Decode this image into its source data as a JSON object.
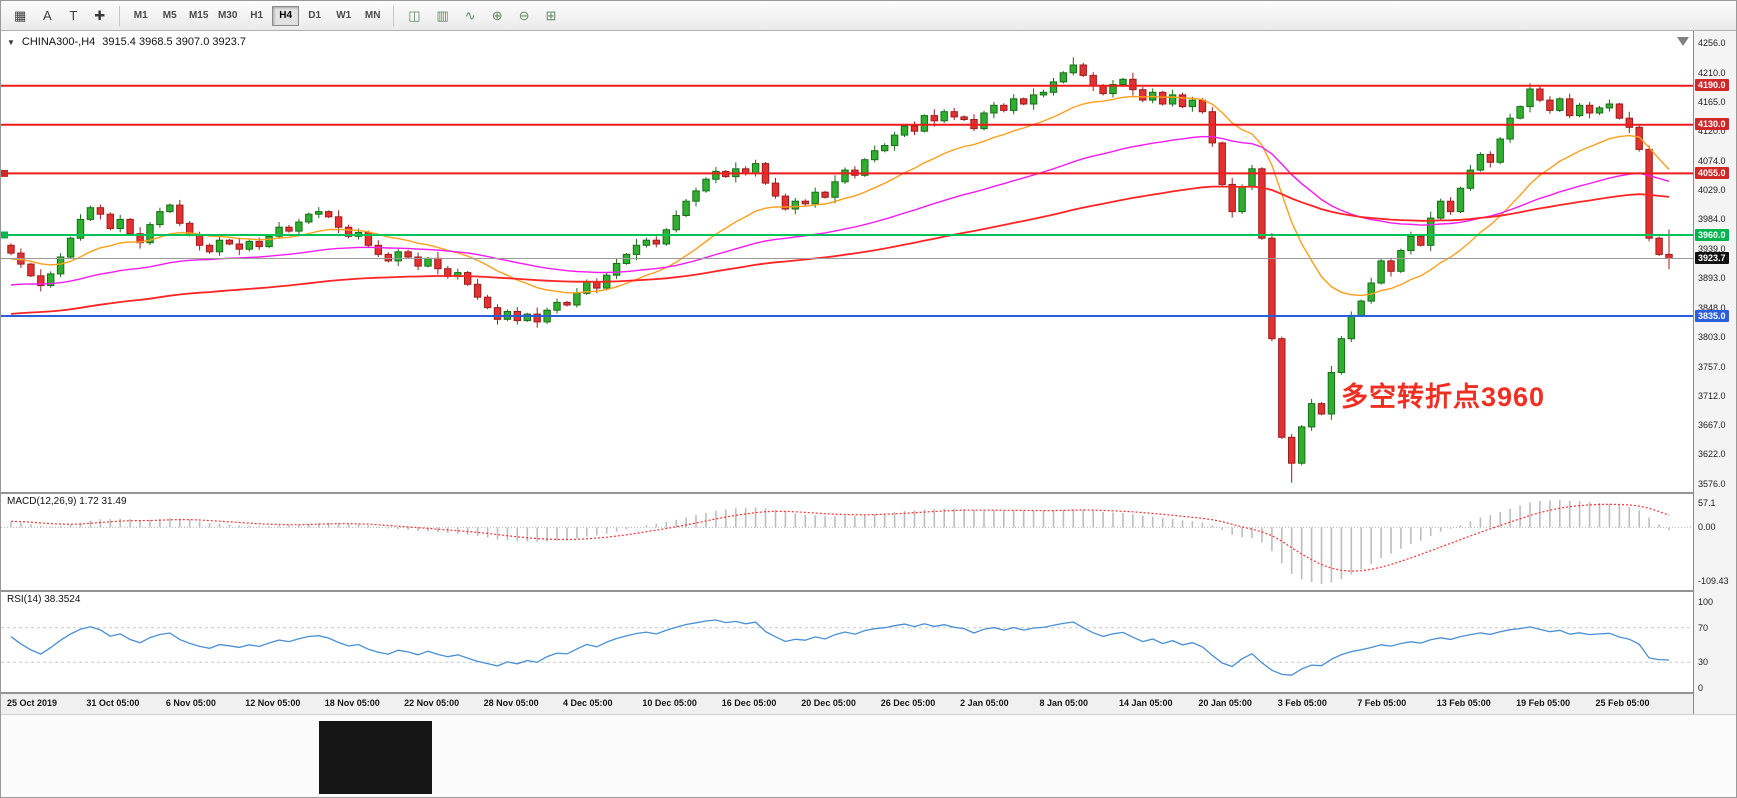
{
  "toolbar": {
    "left_icons": [
      {
        "glyph": "▦"
      },
      {
        "glyph": "A"
      },
      {
        "glyph": "T"
      },
      {
        "glyph": "✚"
      }
    ],
    "timeframes": [
      "M1",
      "M5",
      "M15",
      "M30",
      "H1",
      "H4",
      "D1",
      "W1",
      "MN"
    ],
    "active_timeframe": "H4",
    "right_icons": [
      {
        "glyph": "◫"
      },
      {
        "glyph": "▥"
      },
      {
        "glyph": "∿"
      },
      {
        "glyph": "⊕"
      },
      {
        "glyph": "⊖"
      },
      {
        "glyph": "⊞"
      }
    ]
  },
  "chart": {
    "symbol": "CHINA300-,H4",
    "ohlc": "3915.4 3968.5 3907.0 3923.7",
    "annotation": {
      "text": "多空转折点3960",
      "color": "#f02f22"
    },
    "y_axis_labels": [
      "4256.0",
      "4210.0",
      "4165.0",
      "4120.0",
      "4074.0",
      "4029.0",
      "3984.0",
      "3939.0",
      "3893.0",
      "3848.0",
      "3803.0",
      "3757.0",
      "3712.0",
      "3667.0",
      "3622.0",
      "3576.0"
    ],
    "y_range": {
      "top_price": 4256.0,
      "bottom_price": 3576.0
    },
    "price_lines": [
      {
        "price": 4190.0,
        "label": "4190.0",
        "color": "#ee1c1c",
        "line_width": 2,
        "tag_bg": "#d02828",
        "tag_fg": "#ffffff",
        "marker": false
      },
      {
        "price": 4130.0,
        "label": "4130.0",
        "color": "#ee1c1c",
        "line_width": 2,
        "tag_bg": "#d02828",
        "tag_fg": "#ffffff",
        "marker": false
      },
      {
        "price": 4055.0,
        "label": "4055.0",
        "color": "#ee1c1c",
        "line_width": 2,
        "tag_bg": "#d02828",
        "tag_fg": "#ffffff",
        "marker": true
      },
      {
        "price": 3960.0,
        "label": "3960.0",
        "color": "#00c45a",
        "line_width": 2,
        "tag_bg": "#00b550",
        "tag_fg": "#ffffff",
        "marker": true
      },
      {
        "price": 3835.0,
        "label": "3835.0",
        "color": "#2b5fd9",
        "line_width": 2,
        "tag_bg": "#2b5fd9",
        "tag_fg": "#ffffff",
        "marker": false
      }
    ],
    "current_price": {
      "value": 3923.7,
      "label": "3923.7",
      "tag_bg": "#101010",
      "tag_fg": "#ffffff",
      "line_color": "#9a9a9a"
    },
    "moving_averages": [
      {
        "name": "ema-fast",
        "period": 18,
        "color": "#ff9f1c",
        "width": 1.4
      },
      {
        "name": "ema-mid",
        "period": 55,
        "color": "#f21bf2",
        "width": 1.4
      },
      {
        "name": "ema-slow",
        "period": 120,
        "color": "#ff2424",
        "width": 1.8
      }
    ],
    "colors": {
      "up": "#2fae2f",
      "up_border": "#176e17",
      "down": "#e23131",
      "down_border": "#9e1c1c"
    },
    "candles": {
      "first_open": 3944,
      "closes": [
        3932,
        3915,
        3897,
        3882,
        3900,
        3926,
        3955,
        3984,
        4002,
        3992,
        3970,
        3984,
        3962,
        3948,
        3976,
        3996,
        4006,
        3978,
        3960,
        3944,
        3934,
        3952,
        3946,
        3938,
        3950,
        3942,
        3958,
        3972,
        3966,
        3980,
        3992,
        3996,
        3988,
        3972,
        3958,
        3964,
        3944,
        3930,
        3920,
        3934,
        3926,
        3912,
        3924,
        3908,
        3896,
        3902,
        3884,
        3864,
        3848,
        3830,
        3842,
        3828,
        3838,
        3826,
        3844,
        3856,
        3852,
        3870,
        3888,
        3878,
        3898,
        3916,
        3930,
        3944,
        3952,
        3946,
        3968,
        3990,
        4012,
        4028,
        4046,
        4058,
        4050,
        4062,
        4055,
        4070,
        4040,
        4020,
        4000,
        4012,
        4008,
        4026,
        4018,
        4042,
        4060,
        4052,
        4076,
        4090,
        4098,
        4114,
        4128,
        4120,
        4144,
        4136,
        4150,
        4142,
        4138,
        4124,
        4148,
        4160,
        4152,
        4170,
        4162,
        4176,
        4180,
        4196,
        4210,
        4222,
        4206,
        4190,
        4178,
        4192,
        4200,
        4184,
        4168,
        4180,
        4162,
        4176,
        4158,
        4168,
        4150,
        4102,
        4038,
        3996,
        4034,
        4062,
        3955,
        3800,
        3648,
        3608,
        3664,
        3700,
        3684,
        3748,
        3800,
        3836,
        3858,
        3886,
        3920,
        3904,
        3936,
        3958,
        3944,
        3986,
        4012,
        3996,
        4032,
        4060,
        4084,
        4072,
        4108,
        4140,
        4158,
        4185,
        4168,
        4152,
        4170,
        4144,
        4160,
        4148,
        4156,
        4162,
        4140,
        4126,
        4092,
        3955,
        3930,
        3923.7
      ],
      "prehistory": [
        3762,
        3770,
        3776,
        3784,
        3790,
        3798,
        3806,
        3812,
        3820,
        3827,
        3835,
        3842,
        3850,
        3857,
        3864,
        3872,
        3878,
        3886,
        3892,
        3899,
        3905,
        3898,
        3910,
        3916,
        3908,
        3920,
        3912,
        3924,
        3918,
        3926,
        3912,
        3905,
        3916,
        3922,
        3910,
        3918,
        3926,
        3914,
        3920,
        3928,
        3916,
        3922,
        3930,
        3918,
        3924,
        3932,
        3920,
        3926,
        3934,
        3938
      ],
      "wick_overrides": {
        "107": {
          "high": 4234
        },
        "129": {
          "low": 3578
        },
        "153": {
          "high": 4194
        },
        "167": {
          "high": 3968.5,
          "low": 3907
        }
      }
    }
  },
  "macd": {
    "label": "MACD(12,26,9) 1.72 31.49",
    "fast": 12,
    "slow": 26,
    "signal_period": 9,
    "axis_labels": [
      "57.1",
      "0.00",
      "-109.43"
    ],
    "histogram_color": "#bdbdbd",
    "signal_color": "#ff3030"
  },
  "rsi": {
    "label": "RSI(14) 38.3524",
    "period": 14,
    "axis_labels": [
      {
        "value": 100,
        "text": "100"
      },
      {
        "value": 70,
        "text": "70"
      },
      {
        "value": 30,
        "text": "30"
      },
      {
        "value": 0,
        "text": "0"
      }
    ],
    "levels": [
      70,
      30
    ],
    "line_color": "#4a8fd4"
  },
  "time_axis": {
    "labels": [
      "25 Oct 2019",
      "31 Oct 05:00",
      "6 Nov 05:00",
      "12 Nov 05:00",
      "18 Nov 05:00",
      "22 Nov 05:00",
      "28 Nov 05:00",
      "4 Dec 05:00",
      "10 Dec 05:00",
      "16 Dec 05:00",
      "20 Dec 05:00",
      "26 Dec 05:00",
      "2 Jan 05:00",
      "8 Jan 05:00",
      "14 Jan 05:00",
      "20 Jan 05:00",
      "3 Feb 05:00",
      "7 Feb 05:00",
      "13 Feb 05:00",
      "19 Feb 05:00",
      "25 Feb 05:00"
    ]
  }
}
